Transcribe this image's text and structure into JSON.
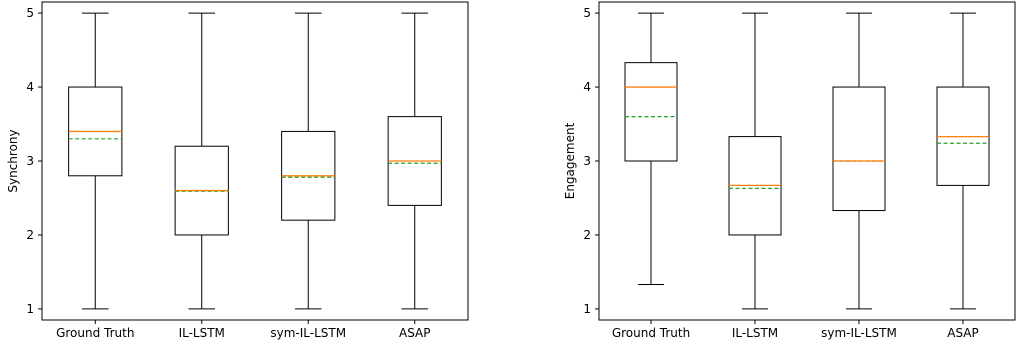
{
  "chart_data": [
    {
      "type": "box",
      "title": "",
      "xlabel": "",
      "ylabel": "Synchrony",
      "ylim": [
        0.85,
        5.15
      ],
      "yticks": [
        1,
        2,
        3,
        4,
        5
      ],
      "grid": false,
      "categories": [
        "Ground Truth",
        "IL-LSTM",
        "sym-IL-LSTM",
        "ASAP"
      ],
      "boxes": [
        {
          "whisker_low": 1,
          "q1": 2.8,
          "median": 3.4,
          "mean": 3.3,
          "q3": 4.0,
          "whisker_high": 5
        },
        {
          "whisker_low": 1,
          "q1": 2.0,
          "median": 2.6,
          "mean": 2.59,
          "q3": 3.2,
          "whisker_high": 5
        },
        {
          "whisker_low": 1,
          "q1": 2.2,
          "median": 2.8,
          "mean": 2.78,
          "q3": 3.4,
          "whisker_high": 5
        },
        {
          "whisker_low": 1,
          "q1": 2.4,
          "median": 3.0,
          "mean": 2.97,
          "q3": 3.6,
          "whisker_high": 5
        }
      ]
    },
    {
      "type": "box",
      "title": "",
      "xlabel": "",
      "ylabel": "Engagement",
      "ylim": [
        0.85,
        5.15
      ],
      "yticks": [
        1,
        2,
        3,
        4,
        5
      ],
      "grid": false,
      "categories": [
        "Ground Truth",
        "IL-LSTM",
        "sym-IL-LSTM",
        "ASAP"
      ],
      "boxes": [
        {
          "whisker_low": 1.33,
          "q1": 3.0,
          "median": 4.0,
          "mean": 3.6,
          "q3": 4.33,
          "whisker_high": 5
        },
        {
          "whisker_low": 1,
          "q1": 2.0,
          "median": 2.67,
          "mean": 2.63,
          "q3": 3.33,
          "whisker_high": 5
        },
        {
          "whisker_low": 1,
          "q1": 2.33,
          "median": 3.0,
          "mean": 3.0,
          "q3": 4.0,
          "whisker_high": 5
        },
        {
          "whisker_low": 1,
          "q1": 2.67,
          "median": 3.33,
          "mean": 3.24,
          "q3": 4.0,
          "whisker_high": 5
        }
      ]
    }
  ],
  "colors": {
    "box": "#000000",
    "median": "#ff7f0e",
    "mean": "#2ca02c"
  }
}
